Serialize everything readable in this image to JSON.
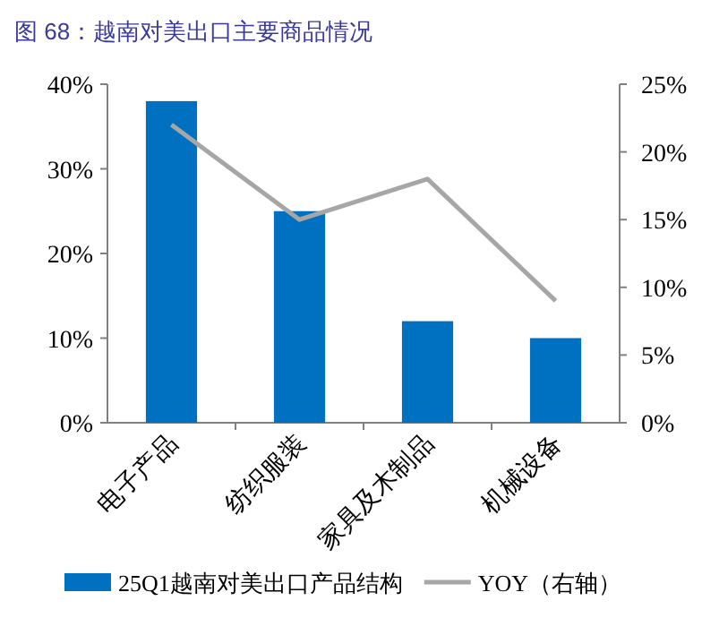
{
  "chart_data": {
    "type": "bar",
    "title": "图 68：越南对美出口主要商品情况",
    "categories": [
      "电子产品",
      "纺织服装",
      "家具及木制品",
      "机械设备"
    ],
    "series": [
      {
        "name": "25Q1越南对美出口产品结构",
        "color": "#0070c0",
        "values": [
          38,
          25,
          12,
          10
        ]
      },
      {
        "name": "YOY（右轴）",
        "type": "line",
        "axis": "y2",
        "color": "#a6a6a6",
        "values": [
          22,
          15,
          18,
          9
        ]
      }
    ],
    "ylim": [
      0,
      40
    ],
    "yticks": [
      {
        "value": 0,
        "label": "0%"
      },
      {
        "value": 10,
        "label": "10%"
      },
      {
        "value": 20,
        "label": "20%"
      },
      {
        "value": 30,
        "label": "30%"
      },
      {
        "value": 40,
        "label": "40%"
      }
    ],
    "y2lim": [
      0,
      25
    ],
    "y2ticks": [
      {
        "value": 0,
        "label": "0%"
      },
      {
        "value": 5,
        "label": "5%"
      },
      {
        "value": 10,
        "label": "10%"
      },
      {
        "value": 15,
        "label": "15%"
      },
      {
        "value": 20,
        "label": "20%"
      },
      {
        "value": 25,
        "label": "25%"
      }
    ],
    "legend": "bottom",
    "grid": false
  }
}
